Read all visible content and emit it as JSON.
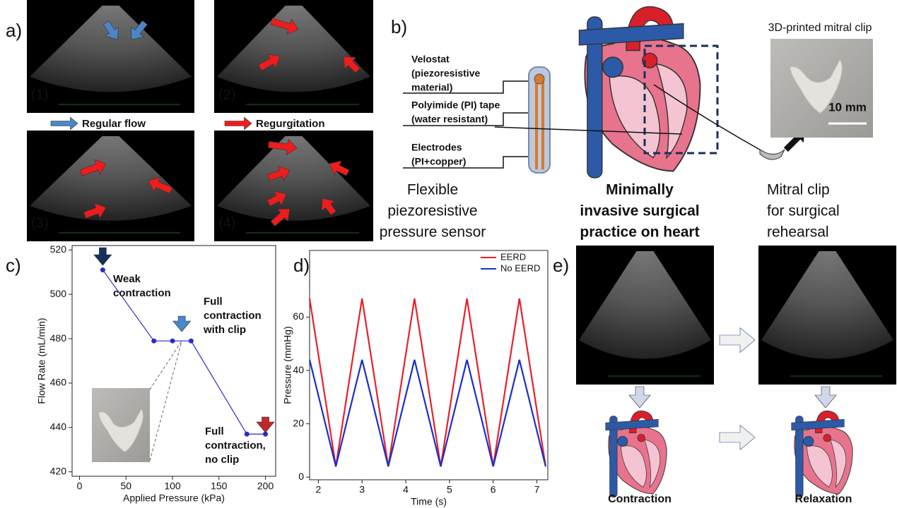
{
  "panel_labels": [
    "a)",
    "b)",
    "c)",
    "d)",
    "e)"
  ],
  "panel_a": {
    "image_labels": [
      "(1)",
      "(2)",
      "(3)",
      "(4)"
    ],
    "regular_flow": "Regular flow",
    "regurgitation": "Regurgitation"
  },
  "panel_b": {
    "layers": [
      [
        "Velostat",
        "(piezoresistive",
        "material)"
      ],
      [
        "Polyimide (PI) tape",
        "(water resistant)"
      ],
      [
        "Electrodes",
        "(PI+copper)"
      ]
    ],
    "sensor_caption": [
      "Flexible",
      "piezoresistive",
      "pressure sensor"
    ],
    "heart_caption": [
      "Minimally",
      "invasive surgical",
      "practice on heart"
    ],
    "clip_title": "3D-printed mitral clip",
    "scale_bar": "10 mm",
    "clip_caption": [
      "Mitral clip",
      "for surgical",
      "rehearsal"
    ]
  },
  "panel_e": {
    "captions": [
      "Contraction",
      "Relaxation"
    ]
  },
  "chart_data": [
    {
      "type": "line",
      "x": [
        25,
        80,
        100,
        120,
        180,
        200
      ],
      "values": [
        511,
        479,
        479,
        479,
        437,
        437
      ],
      "color": "#2a2acc",
      "markers": true,
      "xlabel": "Applied Pressure (kPa)",
      "ylabel": "Flow Rate (mL/min)",
      "xlim": [
        -8,
        211
      ],
      "ylim": [
        418,
        522
      ],
      "xticks": [
        0,
        50,
        100,
        150,
        200
      ],
      "yticks": [
        420,
        440,
        460,
        480,
        500,
        520
      ],
      "annotations": [
        [
          "Weak",
          "contraction"
        ],
        [
          "Full",
          "contraction",
          "with clip"
        ],
        [
          "Full",
          "contraction,",
          "no clip"
        ]
      ]
    },
    {
      "type": "line",
      "x": [
        1.8,
        2.4,
        3.0,
        3.6,
        4.2,
        4.8,
        5.4,
        6.0,
        6.6,
        7.2
      ],
      "series": [
        {
          "name": "EERD",
          "color": "#e8202a",
          "values": [
            67,
            4,
            67,
            4,
            67,
            4,
            67,
            4,
            67,
            4
          ]
        },
        {
          "name": "No EERD",
          "color": "#1a2fcc",
          "values": [
            44,
            4,
            44,
            4,
            44,
            4,
            44,
            4,
            44,
            4
          ]
        }
      ],
      "xlabel": "Time (s)",
      "ylabel": "Pressure (mmHg)",
      "xlim": [
        1.8,
        7.25
      ],
      "ylim": [
        -1,
        85
      ],
      "xticks": [
        2,
        3,
        4,
        5,
        6,
        7
      ],
      "yticks": [
        0,
        20,
        40,
        60
      ],
      "legend": "upper right"
    }
  ]
}
